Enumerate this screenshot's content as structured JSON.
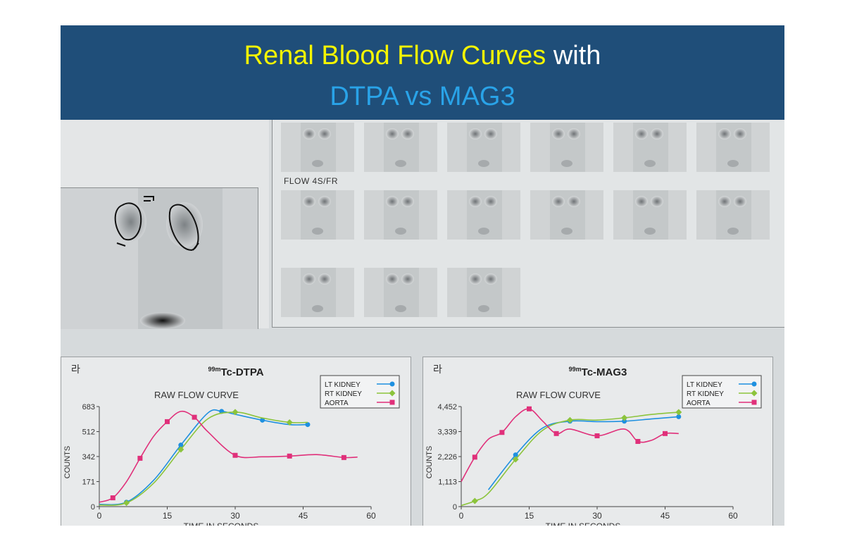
{
  "title": {
    "part1": "Renal Blood Flow Curves",
    "part2": " with",
    "line2": "DTPA vs MAG3"
  },
  "scan": {
    "flow_label": "FLOW 4S/FR",
    "frames_per_row": [
      6,
      6,
      3
    ],
    "korean_mark": "라"
  },
  "colors": {
    "banner": "#1f4e79",
    "title_yellow": "#f5f500",
    "title_blue": "#29a3e8",
    "lt_kidney": "#1e90e0",
    "rt_kidney": "#8cc43c",
    "aorta": "#e0307a"
  },
  "chart_data": [
    {
      "type": "line",
      "heading": "99mTc-DTPA",
      "title": "RAW FLOW CURVE",
      "xlabel": "TIME IN SECONDS",
      "ylabel": "COUNTS",
      "xticks": [
        0,
        15,
        30,
        45,
        60
      ],
      "yticks": [
        0,
        171,
        342,
        512,
        683
      ],
      "xlim": [
        0,
        60
      ],
      "ylim": [
        0,
        683
      ],
      "legend_position": "top-right",
      "series": [
        {
          "name": "LT KIDNEY",
          "color": "#1e90e0",
          "marker": "circle",
          "x": [
            0,
            6,
            12,
            18,
            24,
            27,
            30,
            36,
            42,
            46
          ],
          "y": [
            15,
            30,
            180,
            420,
            640,
            650,
            630,
            590,
            560,
            560
          ]
        },
        {
          "name": "RT KIDNEY",
          "color": "#8cc43c",
          "marker": "diamond",
          "x": [
            0,
            6,
            12,
            18,
            24,
            30,
            36,
            42,
            46
          ],
          "y": [
            10,
            25,
            160,
            390,
            600,
            645,
            605,
            575,
            575
          ]
        },
        {
          "name": "AORTA",
          "color": "#e0307a",
          "marker": "square",
          "x": [
            0,
            3,
            6,
            9,
            12,
            15,
            18,
            21,
            24,
            30,
            36,
            42,
            48,
            54,
            57
          ],
          "y": [
            30,
            60,
            170,
            330,
            480,
            580,
            650,
            610,
            510,
            350,
            340,
            345,
            355,
            335,
            338
          ]
        }
      ]
    },
    {
      "type": "line",
      "heading": "99mTc-MAG3",
      "title": "RAW FLOW CURVE",
      "xlabel": "TIME IN SECONDS",
      "ylabel": "COUNTS",
      "xticks": [
        0,
        15,
        30,
        45,
        60
      ],
      "yticks": [
        0,
        1113,
        2226,
        3339,
        4452
      ],
      "xlim": [
        0,
        60
      ],
      "ylim": [
        0,
        4452
      ],
      "legend_position": "top-right",
      "series": [
        {
          "name": "LT KIDNEY",
          "color": "#1e90e0",
          "marker": "circle",
          "x": [
            6,
            12,
            18,
            24,
            30,
            36,
            42,
            48
          ],
          "y": [
            750,
            2300,
            3500,
            3800,
            3780,
            3800,
            3900,
            4000
          ]
        },
        {
          "name": "RT KIDNEY",
          "color": "#8cc43c",
          "marker": "diamond",
          "x": [
            0,
            3,
            6,
            12,
            18,
            24,
            30,
            36,
            42,
            48
          ],
          "y": [
            50,
            250,
            600,
            2100,
            3400,
            3850,
            3850,
            3950,
            4100,
            4200
          ]
        },
        {
          "name": "AORTA",
          "color": "#e0307a",
          "marker": "square",
          "x": [
            0,
            3,
            6,
            9,
            12,
            15,
            18,
            21,
            24,
            30,
            36,
            39,
            42,
            45,
            48
          ],
          "y": [
            1113,
            2200,
            3000,
            3300,
            4000,
            4350,
            3800,
            3250,
            3450,
            3150,
            3450,
            2900,
            2950,
            3250,
            3250
          ]
        }
      ]
    }
  ]
}
